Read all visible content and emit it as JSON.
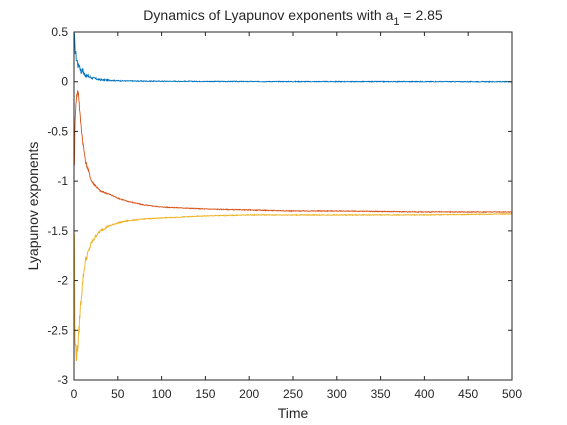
{
  "chart_data": {
    "type": "line",
    "title": {
      "main": "Dynamics of Lyapunov exponents with a",
      "subscript": "1",
      "suffix": " = 2.85"
    },
    "xlabel": "Time",
    "ylabel": "Lyapunov exponents",
    "xlim": [
      0,
      500
    ],
    "ylim": [
      -3,
      0.5
    ],
    "xticks": [
      0,
      50,
      100,
      150,
      200,
      250,
      300,
      350,
      400,
      450,
      500
    ],
    "yticks": [
      -3,
      -2.5,
      -2,
      -1.5,
      -1,
      -0.5,
      0,
      0.5
    ],
    "grid": false,
    "legend": "none",
    "series": [
      {
        "color": "#0072BD",
        "x": [
          0.5,
          1,
          2,
          3,
          4,
          5,
          6,
          8,
          10,
          12,
          15,
          20,
          25,
          30,
          40,
          50,
          60,
          80,
          100,
          150,
          200,
          300,
          400,
          500
        ],
        "y": [
          0.45,
          0.35,
          0.28,
          0.22,
          0.2,
          0.15,
          0.18,
          0.1,
          0.12,
          0.07,
          0.06,
          0.04,
          0.03,
          0.02,
          0.015,
          0.01,
          0.008,
          0.006,
          0.005,
          0.003,
          0.002,
          0.001,
          0.001,
          0.0
        ],
        "noise": 0.05
      },
      {
        "color": "#D95319",
        "x": [
          0.5,
          1,
          2,
          3,
          4,
          5,
          7,
          10,
          13,
          15,
          20,
          25,
          30,
          40,
          50,
          60,
          80,
          100,
          150,
          200,
          250,
          300,
          400,
          500
        ],
        "y": [
          -0.8,
          -0.5,
          -0.2,
          -0.15,
          -0.1,
          -0.1,
          -0.35,
          -0.6,
          -0.8,
          -0.85,
          -1.0,
          -1.05,
          -1.1,
          -1.13,
          -1.17,
          -1.2,
          -1.24,
          -1.26,
          -1.28,
          -1.29,
          -1.3,
          -1.3,
          -1.31,
          -1.31
        ],
        "noise": 0.05
      },
      {
        "color": "#EDB120",
        "x": [
          0.5,
          1,
          2,
          3,
          5,
          7,
          10,
          13,
          15,
          20,
          25,
          30,
          40,
          50,
          60,
          80,
          100,
          150,
          200,
          250,
          300,
          400,
          500
        ],
        "y": [
          -1.5,
          -2.6,
          -2.7,
          -2.75,
          -2.6,
          -2.3,
          -2.0,
          -1.8,
          -1.75,
          -1.62,
          -1.55,
          -1.5,
          -1.45,
          -1.42,
          -1.4,
          -1.38,
          -1.37,
          -1.35,
          -1.34,
          -1.34,
          -1.34,
          -1.34,
          -1.33
        ],
        "noise": 0.1
      }
    ]
  }
}
